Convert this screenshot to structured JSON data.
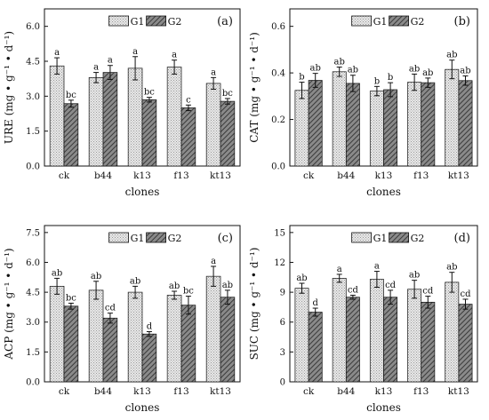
{
  "colors": {
    "axis": "#111111",
    "g1_fill": "#e4e4e4",
    "g2_fill": "#6e6e6e",
    "error_bar": "#111111",
    "sig_label": "#111111"
  },
  "chart_data": [
    {
      "type": "bar",
      "panel_label": "(a)",
      "xlabel": "clones",
      "ylabel": "URE (mg • g⁻¹ • d⁻¹)",
      "ylim": [
        0,
        6.75
      ],
      "yticks": [
        "0.0",
        "1.5",
        "3.0",
        "4.5",
        "6.0"
      ],
      "yticks_values": [
        0,
        1.5,
        3.0,
        4.5,
        6.0
      ],
      "categories": [
        "ck",
        "b44",
        "k13",
        "f13",
        "kt13"
      ],
      "legend": {
        "position": "top",
        "entries": [
          "G1",
          "G2"
        ]
      },
      "series": [
        {
          "name": "G1",
          "values": [
            4.3,
            3.8,
            4.2,
            4.25,
            3.55
          ],
          "errors": [
            0.35,
            0.22,
            0.5,
            0.3,
            0.25
          ],
          "labels": [
            "a",
            "a",
            "a",
            "a",
            "a"
          ]
        },
        {
          "name": "G2",
          "values": [
            2.68,
            4.02,
            2.85,
            2.5,
            2.78
          ],
          "errors": [
            0.15,
            0.3,
            0.1,
            0.12,
            0.12
          ],
          "labels": [
            "bc",
            "a",
            "bc",
            "c",
            "bc"
          ]
        }
      ]
    },
    {
      "type": "bar",
      "panel_label": "(b)",
      "xlabel": "clones",
      "ylabel": "CAT (mg • g⁻¹ • d⁻¹)",
      "ylim": [
        0,
        0.675
      ],
      "yticks": [
        "0.0",
        "0.2",
        "0.4",
        "0.6"
      ],
      "yticks_values": [
        0,
        0.2,
        0.4,
        0.6
      ],
      "categories": [
        "ck",
        "b44",
        "k13",
        "f13",
        "kt13"
      ],
      "legend": {
        "position": "top",
        "entries": [
          "G1",
          "G2"
        ]
      },
      "series": [
        {
          "name": "G1",
          "values": [
            0.325,
            0.405,
            0.322,
            0.36,
            0.415
          ],
          "errors": [
            0.035,
            0.02,
            0.02,
            0.035,
            0.04
          ],
          "labels": [
            "b",
            "ab",
            "b",
            "ab",
            "ab"
          ]
        },
        {
          "name": "G2",
          "values": [
            0.368,
            0.355,
            0.328,
            0.358,
            0.367
          ],
          "errors": [
            0.03,
            0.035,
            0.03,
            0.02,
            0.02
          ],
          "labels": [
            "ab",
            "ab",
            "b",
            "ab",
            "ab"
          ]
        }
      ]
    },
    {
      "type": "bar",
      "panel_label": "(c)",
      "xlabel": "clones",
      "ylabel": "ACP (mg • g⁻¹ • d⁻¹)",
      "ylim": [
        0,
        7.85
      ],
      "yticks": [
        "0.0",
        "1.5",
        "3.0",
        "4.5",
        "6.0",
        "7.5"
      ],
      "yticks_values": [
        0,
        1.5,
        3.0,
        4.5,
        6.0,
        7.5
      ],
      "categories": [
        "ck",
        "b44",
        "k13",
        "f13",
        "kt13"
      ],
      "legend": {
        "position": "top",
        "entries": [
          "G1",
          "G2"
        ]
      },
      "series": [
        {
          "name": "G1",
          "values": [
            4.8,
            4.6,
            4.5,
            4.35,
            5.3
          ],
          "errors": [
            0.4,
            0.45,
            0.3,
            0.2,
            0.5
          ],
          "labels": [
            "ab",
            "ab",
            "ab",
            "ab",
            "a"
          ]
        },
        {
          "name": "G2",
          "values": [
            3.8,
            3.2,
            2.4,
            3.85,
            4.25
          ],
          "errors": [
            0.15,
            0.25,
            0.12,
            0.45,
            0.35
          ],
          "labels": [
            "bc",
            "cd",
            "d",
            "bc",
            "ab"
          ]
        }
      ]
    },
    {
      "type": "bar",
      "panel_label": "(d)",
      "xlabel": "clones",
      "ylabel": "SUC (mg • g⁻¹ • d⁻¹)",
      "ylim": [
        0,
        15.7
      ],
      "yticks": [
        "0",
        "3",
        "6",
        "9",
        "12",
        "15"
      ],
      "yticks_values": [
        0,
        3,
        6,
        9,
        12,
        15
      ],
      "categories": [
        "ck",
        "b44",
        "k13",
        "f13",
        "kt13"
      ],
      "legend": {
        "position": "top",
        "entries": [
          "G1",
          "G2"
        ]
      },
      "series": [
        {
          "name": "G1",
          "values": [
            9.4,
            10.4,
            10.3,
            9.3,
            10.0
          ],
          "errors": [
            0.5,
            0.4,
            0.8,
            0.9,
            1.0
          ],
          "labels": [
            "ab",
            "a",
            "a",
            "ab",
            "ab"
          ]
        },
        {
          "name": "G2",
          "values": [
            7.0,
            8.5,
            8.5,
            8.0,
            7.8
          ],
          "errors": [
            0.4,
            0.2,
            0.7,
            0.6,
            0.5
          ],
          "labels": [
            "d",
            "cd",
            "cd",
            "cd",
            "cd"
          ]
        }
      ]
    }
  ]
}
